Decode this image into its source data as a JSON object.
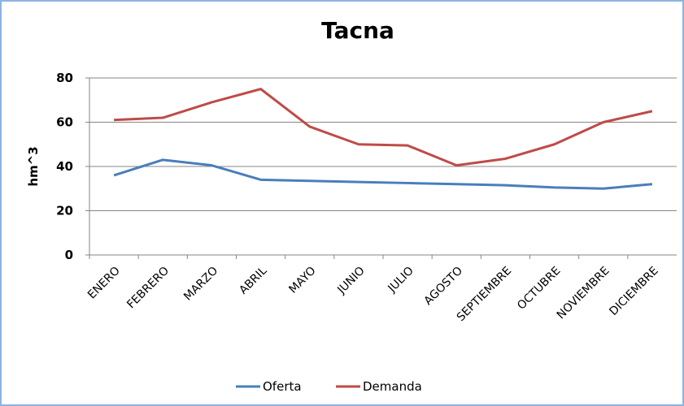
{
  "chart_data": {
    "type": "line",
    "title": "Tacna",
    "y_label": "hm^3",
    "categories": [
      "ENERO",
      "FEBRERO",
      "MARZO",
      "ABRIL",
      "MAYO",
      "JUNIO",
      "JULIO",
      "AGOSTO",
      "SEPTIEMBRE",
      "OCTUBRE",
      "NOVIEMBRE",
      "DICIEMBRE"
    ],
    "series": [
      {
        "name": "Oferta",
        "color": "#4a7ebb",
        "values": [
          36,
          43,
          40.5,
          34,
          33.5,
          33,
          32.5,
          32,
          31.5,
          30.5,
          30,
          32
        ]
      },
      {
        "name": "Demanda",
        "color": "#be4b48",
        "values": [
          61,
          62,
          69,
          75,
          58,
          50,
          49.5,
          40.5,
          43.5,
          50,
          60,
          65
        ]
      }
    ],
    "ylim": [
      0,
      80
    ],
    "yticks": [
      0,
      20,
      40,
      60,
      80
    ],
    "grid": true,
    "legend": "bottom"
  }
}
